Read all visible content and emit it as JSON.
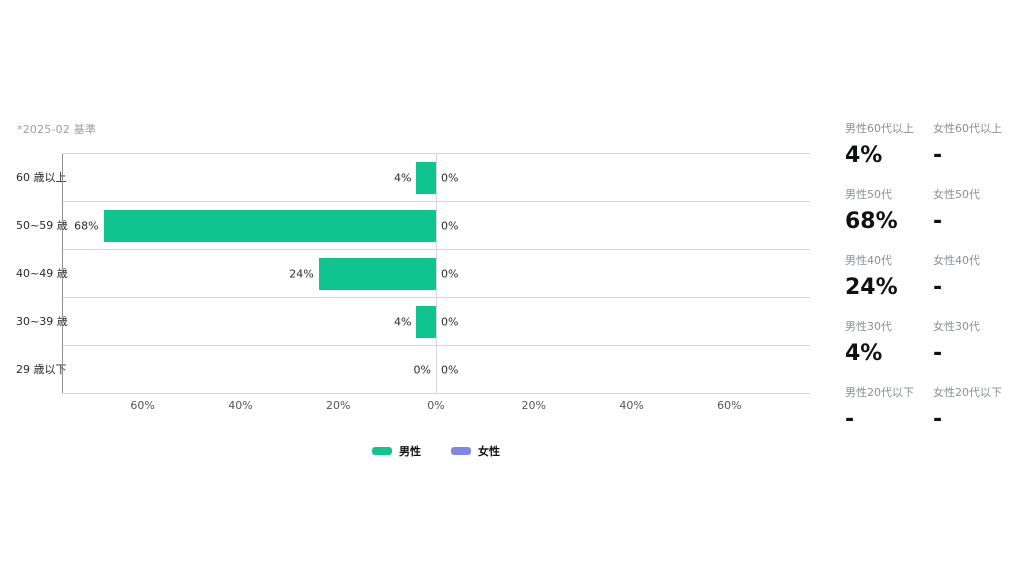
{
  "note": "*2025-02 基準",
  "chart_data": {
    "type": "bar",
    "orientation": "horizontal-diverging",
    "title": "",
    "categories": [
      "60 歳以上",
      "50~59 歳",
      "40~49 歳",
      "30~39 歳",
      "29 歳以下"
    ],
    "series": [
      {
        "name": "男性",
        "color": "#0fc48f",
        "side": "left",
        "values": [
          4,
          68,
          24,
          4,
          0
        ]
      },
      {
        "name": "女性",
        "color": "#8187e6",
        "side": "right",
        "values": [
          0,
          0,
          0,
          0,
          0
        ]
      }
    ],
    "x_ticks": [
      -60,
      -40,
      -20,
      0,
      20,
      40,
      60
    ],
    "x_tick_suffix": "%",
    "x_half_range": 76.5,
    "grid": "horizontal",
    "legend_position": "bottom"
  },
  "stats_panel": {
    "cells": [
      {
        "label": "男性60代以上",
        "value": "4%"
      },
      {
        "label": "女性60代以上",
        "value": "-"
      },
      {
        "label": "男性50代",
        "value": "68%"
      },
      {
        "label": "女性50代",
        "value": "-"
      },
      {
        "label": "男性40代",
        "value": "24%"
      },
      {
        "label": "女性40代",
        "value": "-"
      },
      {
        "label": "男性30代",
        "value": "4%"
      },
      {
        "label": "女性30代",
        "value": "-"
      },
      {
        "label": "男性20代以下",
        "value": "-"
      },
      {
        "label": "女性20代以下",
        "value": "-"
      }
    ]
  }
}
